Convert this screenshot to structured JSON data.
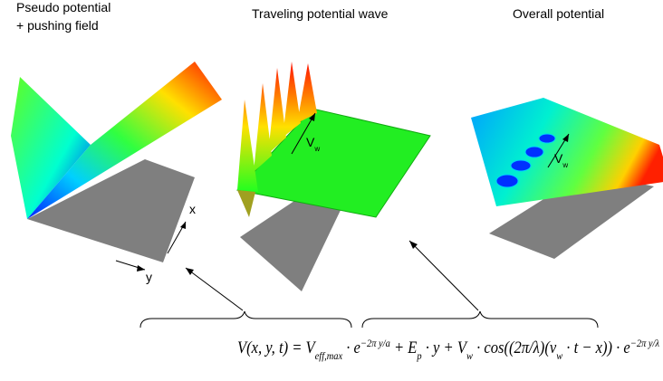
{
  "titles": {
    "left": [
      "Pseudo potential",
      "+ pushing field"
    ],
    "middle": "Traveling potential wave",
    "right": "Overall potential"
  },
  "axis_labels": {
    "x": "x",
    "y": "y"
  },
  "wave_labels": [
    {
      "text": "V",
      "sub": "w"
    },
    {
      "text": "V",
      "sub": "w"
    }
  ],
  "equation": [
    {
      "text": "V(x, y, t) = V",
      "style": "normal"
    },
    {
      "text": "eff,max",
      "style": "sub"
    },
    {
      "text": " · e",
      "style": "normal"
    },
    {
      "text": "−2π y/a",
      "style": "sup"
    },
    {
      "text": " + E",
      "style": "normal"
    },
    {
      "text": "p",
      "style": "sub"
    },
    {
      "text": " · y + V",
      "style": "normal"
    },
    {
      "text": "w",
      "style": "sub"
    },
    {
      "text": " · cos((2π/λ)(v",
      "style": "normal"
    },
    {
      "text": "w",
      "style": "sub"
    },
    {
      "text": " · t − x)) · e",
      "style": "normal"
    },
    {
      "text": "−2π y/λ",
      "style": "sup"
    }
  ]
}
